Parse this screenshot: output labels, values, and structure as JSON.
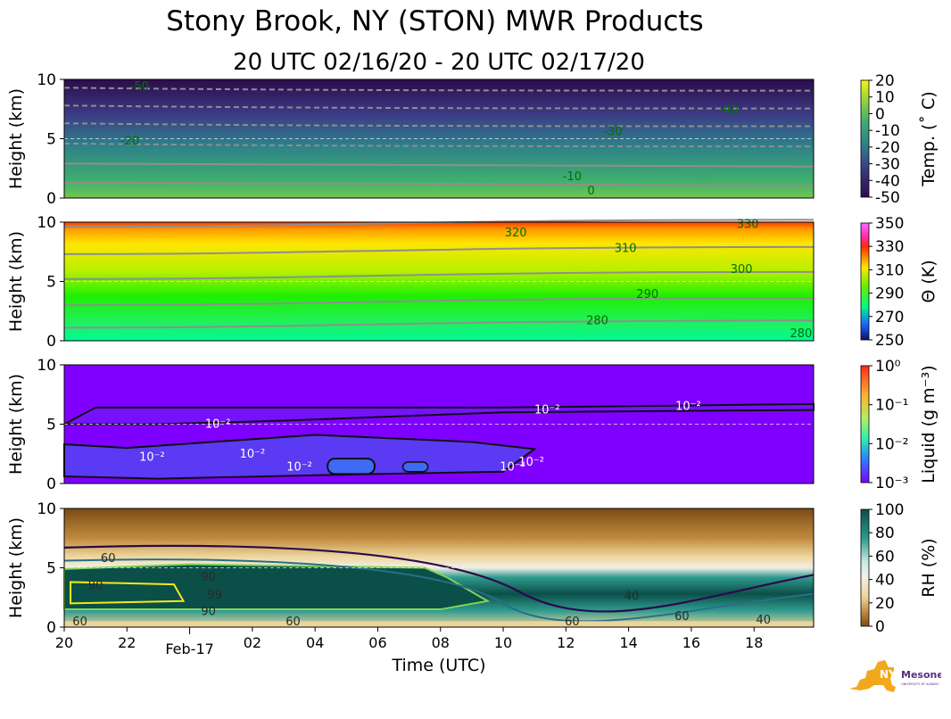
{
  "header": {
    "title": "Stony Brook, NY (STON) MWR Products",
    "subtitle": "20 UTC 02/16/20 - 20 UTC 02/17/20"
  },
  "logo": {
    "name": "NYS Mesonet",
    "text_main": "NYS",
    "text_side": "Mesonet",
    "text_small": "UNIVERSITY AT ALBANY"
  },
  "chart_data": [
    {
      "type": "heatmap",
      "name": "temperature",
      "ylabel": "Height (km)",
      "ylim": [
        0,
        10
      ],
      "yticks": [
        "0",
        "5",
        "10"
      ],
      "colorbar": {
        "label": "Temp. (˚ C)",
        "ticks": [
          "20",
          "10",
          "0",
          "-10",
          "-20",
          "-30",
          "-40",
          "-50"
        ],
        "range": [
          -50,
          20
        ]
      },
      "contour_labels": [
        {
          "text": "-50",
          "t": 2.4,
          "h": 9.4
        },
        {
          "text": "-40",
          "t": 21.2,
          "h": 7.4
        },
        {
          "text": "-30",
          "t": 17.5,
          "h": 5.6
        },
        {
          "text": "-20",
          "t": 2.1,
          "h": 4.8
        },
        {
          "text": "-10",
          "t": 16.2,
          "h": 1.8
        },
        {
          "text": "0",
          "t": 16.8,
          "h": 0.6
        }
      ],
      "colors": {
        "top": "#2c0c4a",
        "mid": "#2d7f8a",
        "bottom": "#6fc64e",
        "contour": "#8f8f8f",
        "label": "#007000"
      }
    },
    {
      "type": "heatmap",
      "name": "potential-temperature",
      "ylabel": "Height (km)",
      "ylim": [
        0,
        10
      ],
      "yticks": [
        "0",
        "5",
        "10"
      ],
      "colorbar": {
        "label": "Θ (K)",
        "ticks": [
          "350",
          "330",
          "310",
          "290",
          "270",
          "250"
        ],
        "range": [
          250,
          360
        ]
      },
      "contour_labels": [
        {
          "text": "320",
          "t": 14.4,
          "h": 9.1
        },
        {
          "text": "330",
          "t": 21.8,
          "h": 9.8
        },
        {
          "text": "310",
          "t": 17.9,
          "h": 7.8
        },
        {
          "text": "300",
          "t": 21.6,
          "h": 6.0
        },
        {
          "text": "290",
          "t": 18.6,
          "h": 3.9
        },
        {
          "text": "280",
          "t": 17.0,
          "h": 1.7
        },
        {
          "text": "280",
          "t": 23.5,
          "h": 0.6
        }
      ],
      "colors": {
        "top": "#ff3a00",
        "yellow": "#ffe600",
        "green": "#1ef000",
        "bottom": "#00fa96",
        "contour": "#8f8f8f",
        "label": "#007000"
      }
    },
    {
      "type": "heatmap",
      "name": "liquid-water",
      "ylabel": "Height (km)",
      "ylim": [
        0,
        10
      ],
      "yticks": [
        "0",
        "5",
        "10"
      ],
      "colorbar": {
        "label": "Liquid (g m⁻³)",
        "ticks": [
          "10⁰",
          "10⁻¹",
          "10⁻²",
          "10⁻³"
        ],
        "scale": "log",
        "range": [
          0.001,
          1
        ]
      },
      "contour_labels": [
        {
          "text": "10⁻²",
          "t": 4.9,
          "h": 5.0
        },
        {
          "text": "10⁻²",
          "t": 15.4,
          "h": 6.2
        },
        {
          "text": "10⁻²",
          "t": 19.9,
          "h": 6.5
        },
        {
          "text": "10⁻²",
          "t": 2.8,
          "h": 2.2
        },
        {
          "text": "10⁻²",
          "t": 6.0,
          "h": 2.5
        },
        {
          "text": "10⁻²",
          "t": 7.5,
          "h": 1.4
        },
        {
          "text": "10⁻²",
          "t": 14.3,
          "h": 1.4
        },
        {
          "text": "10⁻²",
          "t": 14.9,
          "h": 1.8
        }
      ],
      "colors": {
        "bg": "#7f00ff",
        "cloud": "#5a3af2",
        "core": "#3f6af5",
        "contour": "#101010",
        "label": "#ffffff"
      }
    },
    {
      "type": "heatmap",
      "name": "relative-humidity",
      "ylabel": "Height (km)",
      "xlabel": "Time (UTC)",
      "ylim": [
        0,
        10
      ],
      "yticks": [
        "0",
        "5",
        "10"
      ],
      "xticks": [
        "20",
        "22",
        "02",
        "04",
        "06",
        "08",
        "10",
        "12",
        "14",
        "16",
        "18"
      ],
      "date_label": "Feb-17",
      "colorbar": {
        "label": "RH (%)",
        "ticks": [
          "100",
          "80",
          "60",
          "40",
          "20",
          "0"
        ],
        "range": [
          0,
          105
        ]
      },
      "contour_labels": [
        {
          "text": "60",
          "t": 1.4,
          "h": 5.8
        },
        {
          "text": "60",
          "t": 0.5,
          "h": 0.0
        },
        {
          "text": "60",
          "t": 7.3,
          "h": 0.0
        },
        {
          "text": "60",
          "t": 16.2,
          "h": 0.0
        },
        {
          "text": "60",
          "t": 19.7,
          "h": 0.9
        },
        {
          "text": "40",
          "t": 18.1,
          "h": 2.6
        },
        {
          "text": "40",
          "t": 22.3,
          "h": 0.6
        },
        {
          "text": "90",
          "t": 1.0,
          "h": 3.5
        },
        {
          "text": "90",
          "t": 4.6,
          "h": 4.2
        },
        {
          "text": "90",
          "t": 4.6,
          "h": 1.3
        },
        {
          "text": "99",
          "t": 4.8,
          "h": 2.7
        }
      ],
      "colors": {
        "top": "#7a4a12",
        "upper": "#c08a3c",
        "tan": "#ecd49a",
        "white": "#f3f0e6",
        "moist": "#2f9b8e",
        "wet": "#0b4f49",
        "c40": "#2b0a4a",
        "c60": "#2a6f86",
        "c90": "#7fd35a",
        "c99": "#f4e81c"
      }
    }
  ]
}
